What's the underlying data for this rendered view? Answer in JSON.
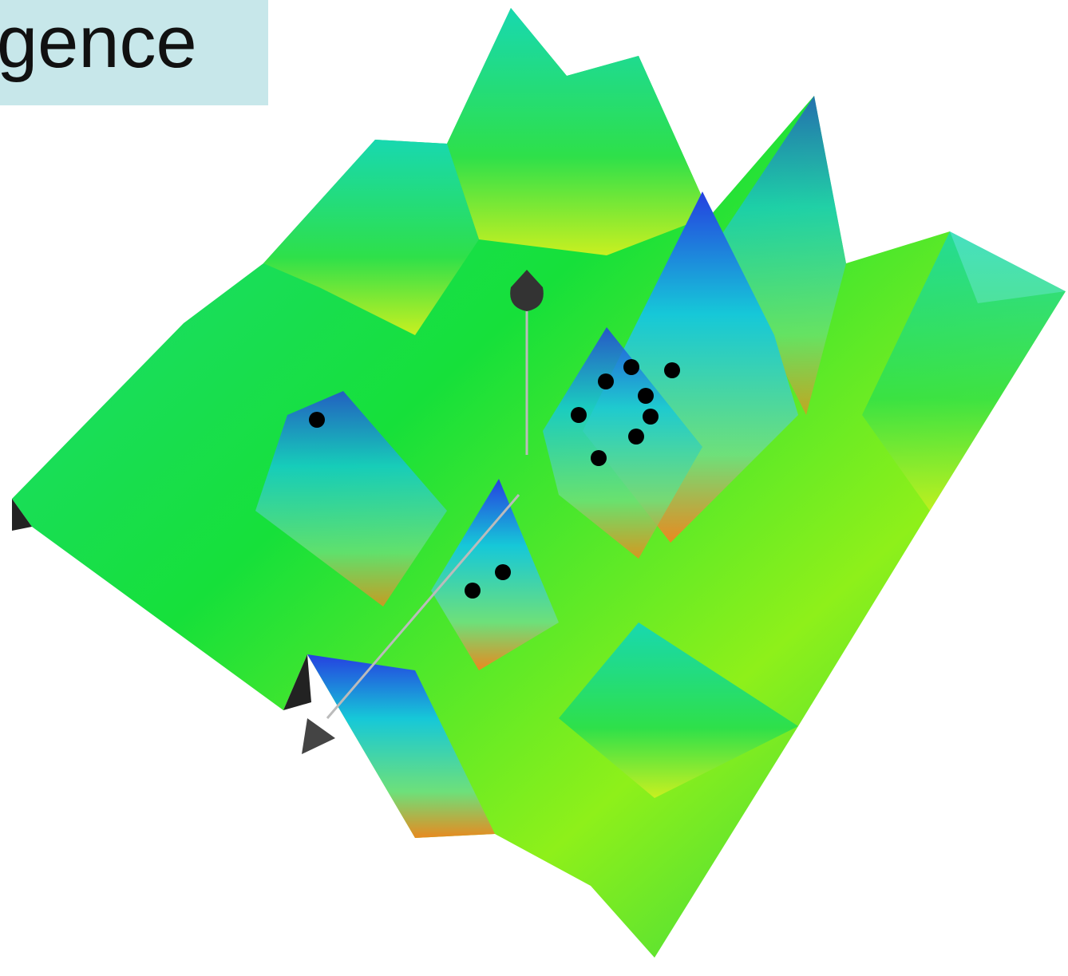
{
  "label": "gence"
}
